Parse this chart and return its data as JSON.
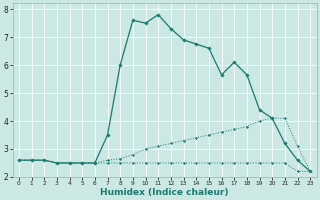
{
  "xlabel": "Humidex (Indice chaleur)",
  "bg_color": "#cce8e4",
  "line_color": "#1a7a6e",
  "grid_color": "#ffffff",
  "xlim": [
    -0.5,
    23.5
  ],
  "ylim": [
    2,
    8.2
  ],
  "yticks": [
    2,
    3,
    4,
    5,
    6,
    7,
    8
  ],
  "xticks": [
    0,
    1,
    2,
    3,
    4,
    5,
    6,
    7,
    8,
    9,
    10,
    11,
    12,
    13,
    14,
    15,
    16,
    17,
    18,
    19,
    20,
    21,
    22,
    23
  ],
  "series_peak_x": [
    0,
    1,
    2,
    3,
    4,
    5,
    6,
    7,
    8,
    9,
    10,
    11,
    12,
    13,
    14,
    15,
    16,
    17,
    18,
    19,
    20,
    21,
    22,
    23
  ],
  "series_peak_y": [
    2.6,
    2.6,
    2.6,
    2.5,
    2.5,
    2.5,
    2.5,
    3.5,
    6.0,
    7.6,
    7.5,
    7.8,
    7.3,
    6.9,
    6.75,
    6.6,
    5.65,
    6.1,
    5.65,
    4.4,
    4.1,
    3.2,
    2.6,
    2.2
  ],
  "series_rise_x": [
    0,
    1,
    2,
    3,
    4,
    5,
    6,
    7,
    8,
    9,
    10,
    11,
    12,
    13,
    14,
    15,
    16,
    17,
    18,
    19,
    20,
    21,
    22,
    23
  ],
  "series_rise_y": [
    2.6,
    2.6,
    2.6,
    2.5,
    2.5,
    2.5,
    2.5,
    2.6,
    2.65,
    2.8,
    3.0,
    3.1,
    3.2,
    3.3,
    3.4,
    3.5,
    3.6,
    3.7,
    3.8,
    4.0,
    4.1,
    4.1,
    3.1,
    2.2
  ],
  "series_flat_x": [
    0,
    1,
    2,
    3,
    4,
    5,
    6,
    7,
    8,
    9,
    10,
    11,
    12,
    13,
    14,
    15,
    16,
    17,
    18,
    19,
    20,
    21,
    22,
    23
  ],
  "series_flat_y": [
    2.6,
    2.6,
    2.6,
    2.5,
    2.5,
    2.5,
    2.5,
    2.5,
    2.5,
    2.5,
    2.5,
    2.5,
    2.5,
    2.5,
    2.5,
    2.5,
    2.5,
    2.5,
    2.5,
    2.5,
    2.5,
    2.5,
    2.2,
    2.2
  ],
  "xlabel_fontsize": 6.5,
  "ytick_fontsize": 5.5,
  "xtick_fontsize": 4.2
}
